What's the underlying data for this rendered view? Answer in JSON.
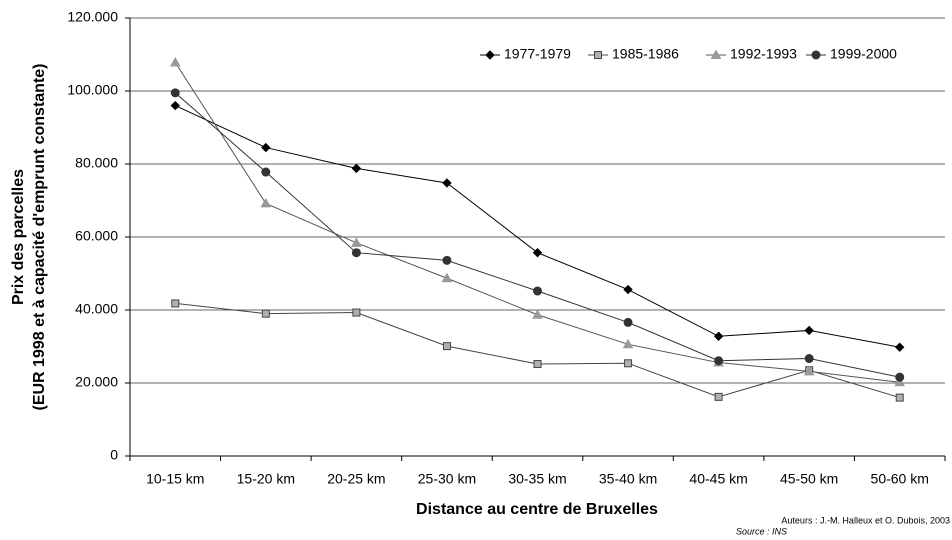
{
  "chart_data": {
    "type": "line",
    "y_label": [
      "Prix des parcelles",
      "(EUR 1998 et à capacité d'emprunt constante)"
    ],
    "x_label": "Distance au centre de Bruxelles",
    "footnote": [
      "Auteurs : J.-M. Halleux et O. Dubois, 2003",
      "Source : INS"
    ],
    "categories": [
      "10-15 km",
      "15-20 km",
      "20-25 km",
      "25-30 km",
      "30-35 km",
      "35-40 km",
      "40-45 km",
      "45-50 km",
      "50-60 km"
    ],
    "series": [
      {
        "name": "1977-1979",
        "color": "#000000",
        "marker": "diamond",
        "marker_fill": "#000000",
        "values": [
          96000,
          84500,
          78800,
          74800,
          55700,
          45600,
          32800,
          34400,
          29800
        ]
      },
      {
        "name": "1985-1986",
        "color": "#444444",
        "marker": "square",
        "marker_fill": "#b0b0b0",
        "values": [
          41800,
          39000,
          39300,
          30100,
          25200,
          25400,
          16200,
          23500,
          16000
        ]
      },
      {
        "name": "1992-1993",
        "color": "#555555",
        "marker": "triangle",
        "marker_fill": "#999999",
        "values": [
          107800,
          69200,
          58400,
          48700,
          38700,
          30600,
          25600,
          23200,
          20200
        ]
      },
      {
        "name": "1999-2000",
        "color": "#333333",
        "marker": "circle",
        "marker_fill": "#333333",
        "values": [
          99500,
          77800,
          55700,
          53600,
          45200,
          36600,
          26100,
          26700,
          21600
        ]
      }
    ],
    "ylim": [
      0,
      120000
    ],
    "yticks": [
      0,
      {
        "value": 20000,
        "label": "20.000"
      },
      {
        "value": 40000,
        "label": "40.000"
      },
      {
        "value": 60000,
        "label": "60.000"
      },
      {
        "value": 80000,
        "label": "80.000"
      },
      {
        "value": 100000,
        "label": "100.000"
      },
      {
        "value": 120000,
        "label": "120.000"
      }
    ],
    "grid": true,
    "legend": "top-right"
  }
}
